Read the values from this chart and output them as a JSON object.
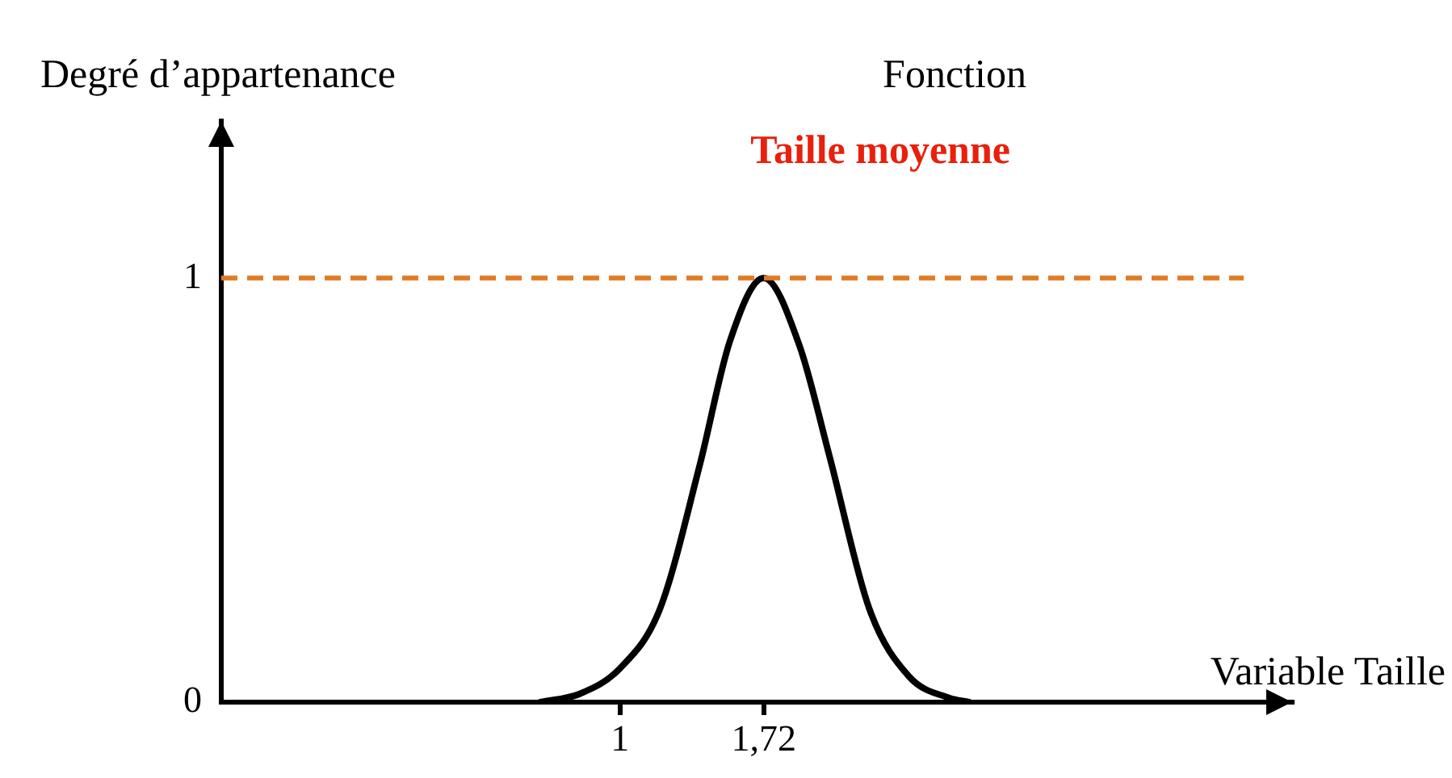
{
  "chart_data": {
    "type": "line",
    "title": "Fonction",
    "subtitle": "Taille moyenne",
    "xlabel": "Variable Taille",
    "ylabel": "Degré d’appartenance",
    "series": [
      {
        "color": "#000000",
        "x": [
          0.6,
          0.8,
          1.0,
          1.2,
          1.4,
          1.55,
          1.72,
          1.9,
          2.05,
          2.25,
          2.45,
          2.65,
          2.75
        ],
        "values": [
          0,
          0.02,
          0.08,
          0.22,
          0.56,
          0.85,
          1,
          0.84,
          0.58,
          0.22,
          0.06,
          0.01,
          0
        ]
      }
    ],
    "xlim": [
      -1.0,
      4.37
    ],
    "xticks": [
      1,
      {
        "value": 1.72,
        "label": "1,72"
      }
    ],
    "ylim": [
      0,
      1.37
    ],
    "yticks": [
      0,
      1
    ],
    "ref_lines": [
      {
        "axis": "y",
        "value": 1,
        "color": "#e07b24",
        "line_style": "dashed"
      }
    ],
    "marker": "none",
    "line_style": "solid"
  }
}
